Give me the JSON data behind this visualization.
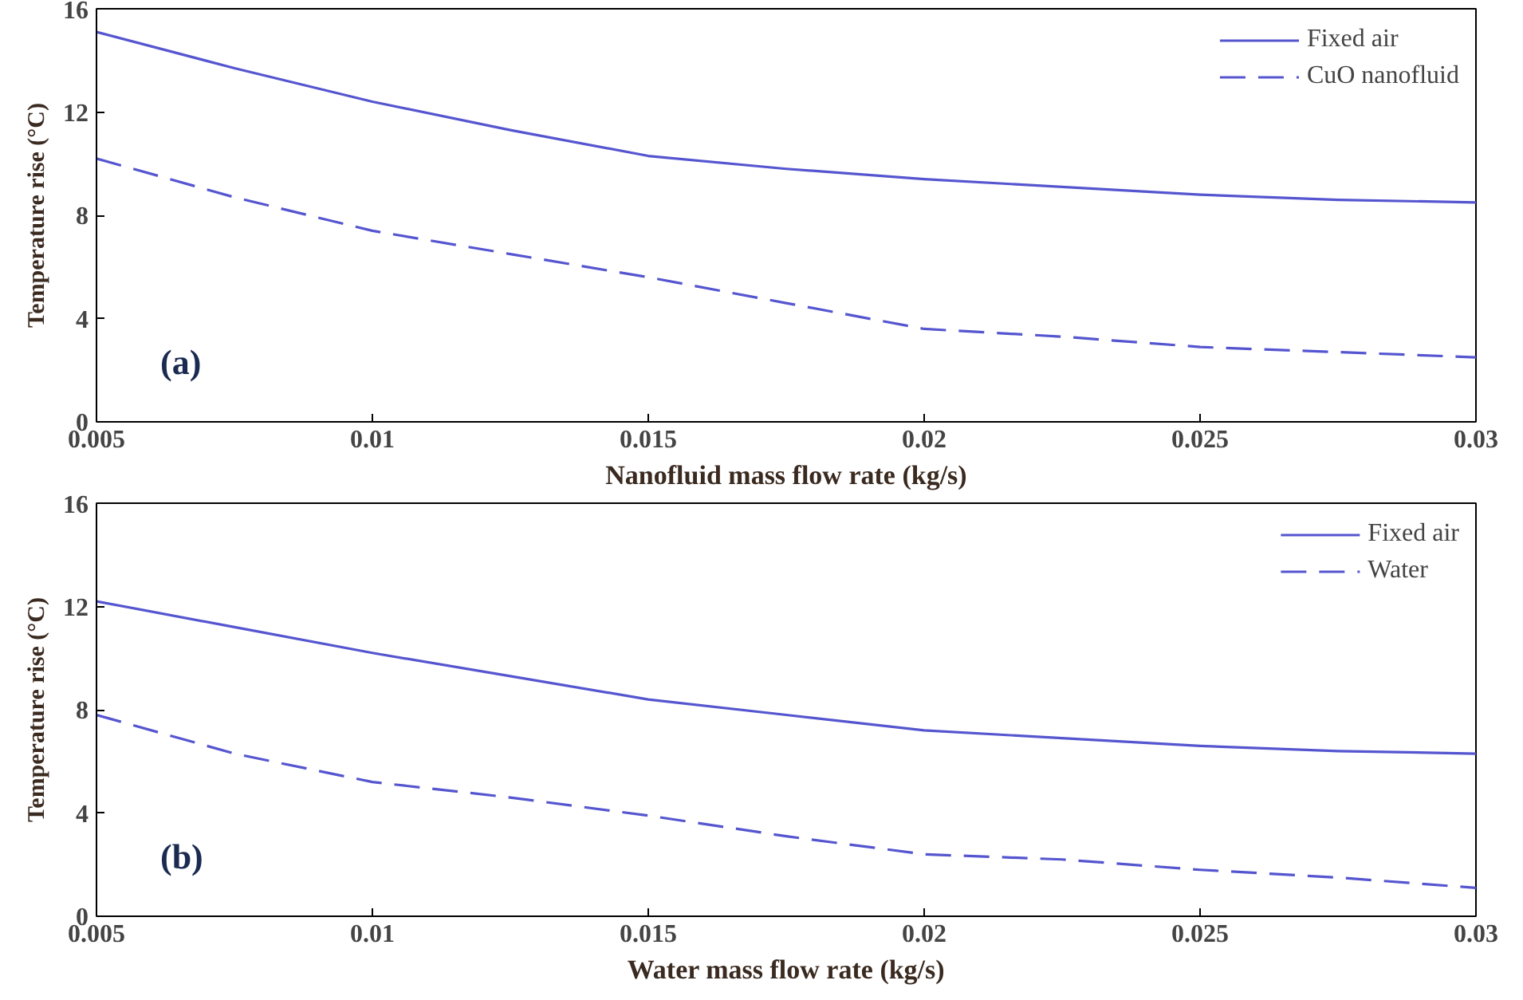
{
  "chart_data": [
    {
      "type": "line",
      "xlabel": "Nanofluid mass flow rate (kg/s)",
      "ylabel": "Temperature rise (°C)",
      "annotations": [
        "(a)"
      ],
      "x": [
        0.005,
        0.0075,
        0.01,
        0.0125,
        0.015,
        0.0175,
        0.02,
        0.0225,
        0.025,
        0.0275,
        0.03
      ],
      "series": [
        {
          "name": "Fixed air",
          "color": "#5555d0",
          "line_style": "solid",
          "values": [
            15.1,
            13.7,
            12.4,
            11.3,
            10.3,
            9.8,
            9.4,
            9.1,
            8.8,
            8.6,
            8.5
          ]
        },
        {
          "name": "CuO nanofluid",
          "color": "#5555d0",
          "line_style": "dashed",
          "values": [
            10.2,
            8.7,
            7.4,
            6.5,
            5.6,
            4.6,
            3.6,
            3.3,
            2.9,
            2.7,
            2.5
          ]
        }
      ],
      "xlim": [
        0.005,
        0.03
      ],
      "xticks": [
        0.005,
        0.01,
        0.015,
        0.02,
        0.025,
        0.03
      ],
      "ylim": [
        0,
        16
      ],
      "yticks": [
        0,
        4,
        8,
        12,
        16
      ],
      "grid": false,
      "legend": "top right",
      "marker": "none"
    },
    {
      "type": "line",
      "xlabel": "Water mass flow rate (kg/s)",
      "ylabel": "Temperature rise (°C)",
      "annotations": [
        "(b)"
      ],
      "x": [
        0.005,
        0.0075,
        0.01,
        0.0125,
        0.015,
        0.0175,
        0.02,
        0.0225,
        0.025,
        0.0275,
        0.03
      ],
      "series": [
        {
          "name": "Fixed air",
          "color": "#5555d0",
          "line_style": "solid",
          "values": [
            12.2,
            11.2,
            10.2,
            9.3,
            8.4,
            7.8,
            7.2,
            6.9,
            6.6,
            6.4,
            6.3
          ]
        },
        {
          "name": "Water",
          "color": "#5555d0",
          "line_style": "dashed",
          "values": [
            7.8,
            6.3,
            5.2,
            4.6,
            3.9,
            3.1,
            2.4,
            2.2,
            1.8,
            1.5,
            1.1
          ]
        }
      ],
      "xlim": [
        0.005,
        0.03
      ],
      "xticks": [
        0.005,
        0.01,
        0.015,
        0.02,
        0.025,
        0.03
      ],
      "ylim": [
        0,
        16
      ],
      "yticks": [
        0,
        4,
        8,
        12,
        16
      ],
      "grid": false,
      "legend": "top right",
      "marker": "none"
    }
  ]
}
